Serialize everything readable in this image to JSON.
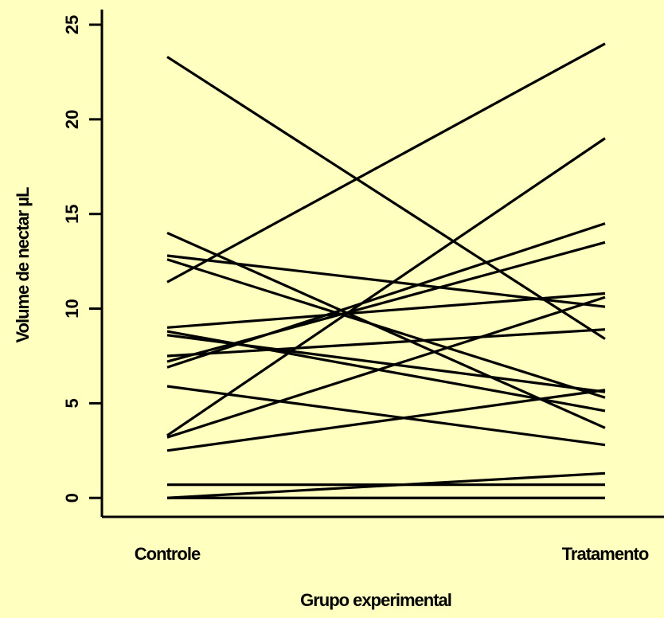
{
  "colors": {
    "background": "#ffffbf",
    "ink": "#000000"
  },
  "chart_data": {
    "type": "line",
    "title": "",
    "xlabel": "Grupo experimental",
    "ylabel": "Volume de nectar µL",
    "categories": [
      "Controle",
      "Tratamento"
    ],
    "ylim": [
      -1,
      25.8
    ],
    "yticks": [
      0,
      5,
      10,
      15,
      20,
      25
    ],
    "ytick_labels": [
      "0",
      "5",
      "10",
      "15",
      "20",
      "25"
    ],
    "grid": false,
    "legend": "none",
    "series": [
      {
        "values": [
          23.3,
          8.4
        ]
      },
      {
        "values": [
          11.4,
          24.0
        ]
      },
      {
        "values": [
          14.0,
          3.7
        ]
      },
      {
        "values": [
          12.8,
          10.1
        ]
      },
      {
        "values": [
          12.6,
          5.3
        ]
      },
      {
        "values": [
          9.0,
          10.8
        ]
      },
      {
        "values": [
          8.8,
          4.6
        ]
      },
      {
        "values": [
          8.6,
          5.6
        ]
      },
      {
        "values": [
          7.5,
          8.9
        ]
      },
      {
        "values": [
          7.2,
          13.5
        ]
      },
      {
        "values": [
          6.9,
          14.5
        ]
      },
      {
        "values": [
          5.9,
          2.8
        ]
      },
      {
        "values": [
          3.3,
          19.0
        ]
      },
      {
        "values": [
          3.2,
          10.6
        ]
      },
      {
        "values": [
          2.5,
          5.7
        ]
      },
      {
        "values": [
          0.7,
          0.7
        ]
      },
      {
        "values": [
          0.0,
          1.3
        ]
      },
      {
        "values": [
          0.0,
          0.0
        ]
      }
    ]
  }
}
